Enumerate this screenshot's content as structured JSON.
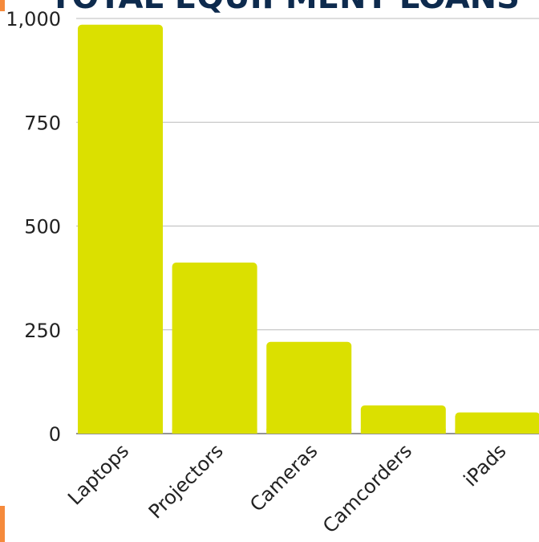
{
  "colors": {
    "bar": "#dbe000",
    "title": "#0d2a4d",
    "grid": "#bbbbbb",
    "axis_text": "#222222",
    "accent": "#f58a3c"
  },
  "chart_data": {
    "type": "bar",
    "title": "TOTAL EQUIPMENT LOANS",
    "xlabel": "",
    "ylabel": "",
    "categories": [
      "Laptops",
      "Projectors",
      "Cameras",
      "Camcorders",
      "iPads"
    ],
    "values": [
      985,
      412,
      221,
      68,
      51
    ],
    "ylim": [
      0,
      1000
    ],
    "yticks": [
      0,
      250,
      500,
      750,
      1000
    ],
    "ytick_labels": [
      "0",
      "250",
      "500",
      "750",
      "1,000"
    ],
    "grid": true,
    "legend": "none"
  }
}
